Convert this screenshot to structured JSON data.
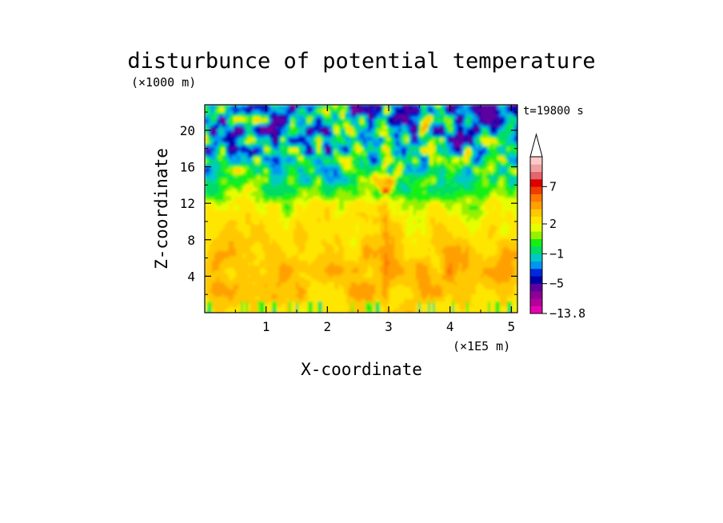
{
  "chart_data": {
    "type": "heatmap",
    "title": "disturbunce of potential temperature",
    "xlabel": "X-coordinate",
    "ylabel": "Z-coordinate",
    "x_unit": "(×1E5 m)",
    "y_unit": "(×1000 m)",
    "time_label": "t=19800 s",
    "x_ticks": [
      "1",
      "2",
      "3",
      "4",
      "5"
    ],
    "x_tick_values": [
      1,
      2,
      3,
      4,
      5
    ],
    "y_ticks": [
      "4",
      "8",
      "12",
      "16",
      "20"
    ],
    "y_tick_values": [
      4,
      8,
      12,
      16,
      20
    ],
    "xlim": [
      0,
      5.1
    ],
    "ylim": [
      0,
      22.8
    ],
    "colorbar": {
      "tick_labels": [
        "7",
        "2",
        "−1",
        "−5",
        "−13.8"
      ],
      "tick_values": [
        7,
        2,
        -1,
        -5,
        -13.8
      ],
      "levels": [
        {
          "min": -13.8,
          "max": -11,
          "color": "#e600b4"
        },
        {
          "min": -11,
          "max": -9,
          "color": "#b4009c"
        },
        {
          "min": -9,
          "max": -7,
          "color": "#8c0096"
        },
        {
          "min": -7,
          "max": -5,
          "color": "#5c00a0"
        },
        {
          "min": -5,
          "max": -4,
          "color": "#0000aa"
        },
        {
          "min": -4,
          "max": -3,
          "color": "#0028dc"
        },
        {
          "min": -3,
          "max": -2,
          "color": "#0096f0"
        },
        {
          "min": -2,
          "max": -1,
          "color": "#00c8c8"
        },
        {
          "min": -1,
          "max": 0,
          "color": "#00dc64"
        },
        {
          "min": 0,
          "max": 1,
          "color": "#14f014"
        },
        {
          "min": 1,
          "max": 1.5,
          "color": "#96f000"
        },
        {
          "min": 1.5,
          "max": 2,
          "color": "#e6ff00"
        },
        {
          "min": 2,
          "max": 3,
          "color": "#ffe600"
        },
        {
          "min": 3,
          "max": 4,
          "color": "#ffc800"
        },
        {
          "min": 4,
          "max": 5,
          "color": "#ffa000"
        },
        {
          "min": 5,
          "max": 6,
          "color": "#ff7800"
        },
        {
          "min": 6,
          "max": 7,
          "color": "#f03c00"
        },
        {
          "min": 7,
          "max": 8,
          "color": "#dc0000"
        },
        {
          "min": 8,
          "max": 9,
          "color": "#e6646e"
        },
        {
          "min": 9,
          "max": 10,
          "color": "#f0a0a0"
        },
        {
          "min": 10,
          "max": 11,
          "color": "#ffc8c8"
        }
      ]
    },
    "field_description": {
      "z_profile": [
        {
          "z": 0.5,
          "value": 2.8
        },
        {
          "z": 2,
          "value": 3.4
        },
        {
          "z": 5,
          "value": 3.8
        },
        {
          "z": 8,
          "value": 3.0
        },
        {
          "z": 10,
          "value": 2.5
        },
        {
          "z": 12,
          "value": 1.8
        },
        {
          "z": 13,
          "value": 0.6
        },
        {
          "z": 15,
          "value": -0.5
        },
        {
          "z": 17,
          "value": -1.0
        },
        {
          "z": 19,
          "value": -2.0
        },
        {
          "z": 22.8,
          "value": -2.5
        }
      ]
    }
  }
}
